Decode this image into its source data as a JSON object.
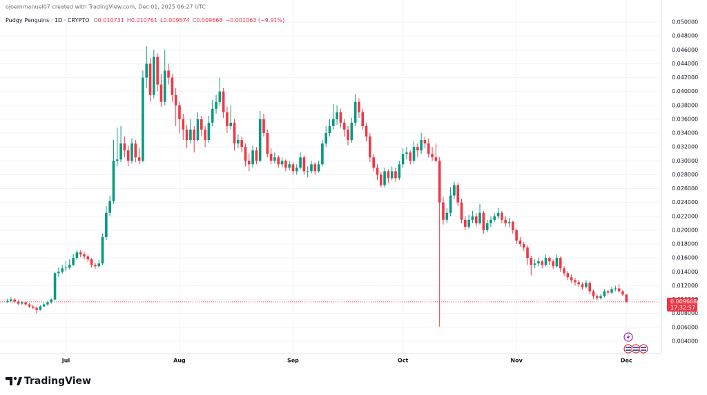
{
  "chart_data": {
    "type": "candlestick",
    "attribution": "ojoemmanuel07 created with TradingView.com, Dec 01, 2025 06:27 UTC",
    "symbol": "Pudgy Penguins · 1D · CRYPTO",
    "ohlc_header": [
      {
        "label": "O",
        "value": "0.010731"
      },
      {
        "label": "H",
        "value": "0.010761"
      },
      {
        "label": "L",
        "value": "0.009574"
      },
      {
        "label": "C",
        "value": "0.009668"
      }
    ],
    "change": "−0.001063 (−9.91%)",
    "last_price": 0.009668,
    "countdown": "17:32:57",
    "brand": "TradingView",
    "up_color": "#089981",
    "down_color": "#f23645",
    "grid": true,
    "xlim": [
      -2,
      178
    ],
    "xticks": [
      {
        "value": 16,
        "label": "Jul"
      },
      {
        "value": 47,
        "label": "Aug"
      },
      {
        "value": 78,
        "label": "Sep"
      },
      {
        "value": 108,
        "label": "Oct"
      },
      {
        "value": 139,
        "label": "Nov"
      },
      {
        "value": 169,
        "label": "Dec"
      }
    ],
    "ylim": [
      0.0022,
      0.0512
    ],
    "yticks": [
      {
        "value": 0.004,
        "label": "0.004000"
      },
      {
        "value": 0.006,
        "label": "0.006000"
      },
      {
        "value": 0.008,
        "label": "0.008000"
      },
      {
        "value": 0.01,
        "label": "0.010000"
      },
      {
        "value": 0.012,
        "label": "0.012000"
      },
      {
        "value": 0.014,
        "label": "0.014000"
      },
      {
        "value": 0.016,
        "label": "0.016000"
      },
      {
        "value": 0.018,
        "label": "0.018000"
      },
      {
        "value": 0.02,
        "label": "0.020000"
      },
      {
        "value": 0.022,
        "label": "0.022000"
      },
      {
        "value": 0.024,
        "label": "0.024000"
      },
      {
        "value": 0.026,
        "label": "0.026000"
      },
      {
        "value": 0.028,
        "label": "0.028000"
      },
      {
        "value": 0.03,
        "label": "0.030000"
      },
      {
        "value": 0.032,
        "label": "0.032000"
      },
      {
        "value": 0.034,
        "label": "0.034000"
      },
      {
        "value": 0.036,
        "label": "0.036000"
      },
      {
        "value": 0.038,
        "label": "0.038000"
      },
      {
        "value": 0.04,
        "label": "0.040000"
      },
      {
        "value": 0.042,
        "label": "0.042000"
      },
      {
        "value": 0.044,
        "label": "0.044000"
      },
      {
        "value": 0.046,
        "label": "0.046000"
      },
      {
        "value": 0.048,
        "label": "0.048000"
      },
      {
        "value": 0.05,
        "label": "0.050000"
      }
    ],
    "candles": [
      [
        0.0097,
        0.0101,
        0.0095,
        0.0098
      ],
      [
        0.0098,
        0.0103,
        0.0096,
        0.01
      ],
      [
        0.01,
        0.0102,
        0.0095,
        0.0097
      ],
      [
        0.0097,
        0.0099,
        0.0092,
        0.0094
      ],
      [
        0.0094,
        0.0098,
        0.0092,
        0.0096
      ],
      [
        0.0096,
        0.0097,
        0.0091,
        0.0093
      ],
      [
        0.0093,
        0.0095,
        0.0088,
        0.009
      ],
      [
        0.009,
        0.0092,
        0.0086,
        0.0088
      ],
      [
        0.0088,
        0.009,
        0.008,
        0.0085
      ],
      [
        0.0085,
        0.0092,
        0.0084,
        0.009
      ],
      [
        0.009,
        0.0095,
        0.0089,
        0.0093
      ],
      [
        0.0093,
        0.0098,
        0.0091,
        0.0096
      ],
      [
        0.0096,
        0.0102,
        0.0094,
        0.01
      ],
      [
        0.01,
        0.014,
        0.0099,
        0.0138
      ],
      [
        0.0138,
        0.0146,
        0.0132,
        0.014
      ],
      [
        0.014,
        0.015,
        0.0137,
        0.0145
      ],
      [
        0.0145,
        0.0155,
        0.0141,
        0.0146
      ],
      [
        0.0146,
        0.0158,
        0.0143,
        0.015
      ],
      [
        0.015,
        0.0166,
        0.0148,
        0.016
      ],
      [
        0.016,
        0.0172,
        0.0157,
        0.0168
      ],
      [
        0.0168,
        0.0171,
        0.0161,
        0.0165
      ],
      [
        0.0165,
        0.0168,
        0.0158,
        0.0162
      ],
      [
        0.0162,
        0.0165,
        0.0154,
        0.0158
      ],
      [
        0.0158,
        0.016,
        0.0146,
        0.015
      ],
      [
        0.015,
        0.0153,
        0.0144,
        0.0148
      ],
      [
        0.0148,
        0.0157,
        0.0146,
        0.0152
      ],
      [
        0.0152,
        0.0195,
        0.015,
        0.019
      ],
      [
        0.019,
        0.0235,
        0.0186,
        0.0225
      ],
      [
        0.0225,
        0.025,
        0.022,
        0.0242
      ],
      [
        0.0242,
        0.033,
        0.0238,
        0.03
      ],
      [
        0.03,
        0.0348,
        0.0292,
        0.0302
      ],
      [
        0.0302,
        0.035,
        0.0298,
        0.0325
      ],
      [
        0.0325,
        0.0335,
        0.0305,
        0.0315
      ],
      [
        0.0315,
        0.0322,
        0.0292,
        0.03
      ],
      [
        0.03,
        0.0332,
        0.0296,
        0.0325
      ],
      [
        0.0325,
        0.033,
        0.0298,
        0.0305
      ],
      [
        0.0305,
        0.0318,
        0.0295,
        0.03
      ],
      [
        0.03,
        0.043,
        0.0298,
        0.042
      ],
      [
        0.042,
        0.0465,
        0.0405,
        0.044
      ],
      [
        0.044,
        0.0448,
        0.0385,
        0.0395
      ],
      [
        0.0395,
        0.046,
        0.039,
        0.045
      ],
      [
        0.045,
        0.0455,
        0.04,
        0.041
      ],
      [
        0.041,
        0.0425,
        0.0378,
        0.0385
      ],
      [
        0.0385,
        0.046,
        0.038,
        0.043
      ],
      [
        0.043,
        0.044,
        0.041,
        0.042
      ],
      [
        0.042,
        0.0425,
        0.0385,
        0.0395
      ],
      [
        0.0395,
        0.0405,
        0.035,
        0.038
      ],
      [
        0.038,
        0.0385,
        0.034,
        0.036
      ],
      [
        0.036,
        0.0368,
        0.033,
        0.0345
      ],
      [
        0.0345,
        0.0352,
        0.0318,
        0.033
      ],
      [
        0.033,
        0.036,
        0.0325,
        0.0345
      ],
      [
        0.0345,
        0.035,
        0.0312,
        0.033
      ],
      [
        0.033,
        0.037,
        0.0328,
        0.036
      ],
      [
        0.036,
        0.0365,
        0.0335,
        0.0345
      ],
      [
        0.0345,
        0.035,
        0.032,
        0.033
      ],
      [
        0.033,
        0.0365,
        0.0326,
        0.0355
      ],
      [
        0.0355,
        0.0388,
        0.035,
        0.0375
      ],
      [
        0.0375,
        0.0395,
        0.0368,
        0.0385
      ],
      [
        0.0385,
        0.042,
        0.038,
        0.04
      ],
      [
        0.04,
        0.0405,
        0.0362,
        0.037
      ],
      [
        0.037,
        0.0378,
        0.034,
        0.035
      ],
      [
        0.035,
        0.038,
        0.0345,
        0.0355
      ],
      [
        0.0355,
        0.036,
        0.0315,
        0.0325
      ],
      [
        0.0325,
        0.0338,
        0.0318,
        0.033
      ],
      [
        0.033,
        0.0335,
        0.0312,
        0.032
      ],
      [
        0.032,
        0.0325,
        0.0292,
        0.03
      ],
      [
        0.03,
        0.031,
        0.0285,
        0.0295
      ],
      [
        0.0295,
        0.0322,
        0.029,
        0.0315
      ],
      [
        0.0315,
        0.032,
        0.0295,
        0.03
      ],
      [
        0.03,
        0.0372,
        0.0298,
        0.036
      ],
      [
        0.036,
        0.0368,
        0.0335,
        0.034
      ],
      [
        0.034,
        0.0345,
        0.0305,
        0.031
      ],
      [
        0.031,
        0.0318,
        0.0295,
        0.03
      ],
      [
        0.03,
        0.0312,
        0.0296,
        0.0305
      ],
      [
        0.0305,
        0.0308,
        0.029,
        0.0295
      ],
      [
        0.0295,
        0.0305,
        0.029,
        0.03
      ],
      [
        0.03,
        0.0302,
        0.0285,
        0.029
      ],
      [
        0.029,
        0.03,
        0.0286,
        0.0295
      ],
      [
        0.0295,
        0.0298,
        0.028,
        0.0285
      ],
      [
        0.0285,
        0.0295,
        0.028,
        0.029
      ],
      [
        0.029,
        0.0312,
        0.0288,
        0.0305
      ],
      [
        0.0305,
        0.0308,
        0.028,
        0.0285
      ],
      [
        0.0285,
        0.0292,
        0.0276,
        0.0285
      ],
      [
        0.0285,
        0.03,
        0.0282,
        0.0295
      ],
      [
        0.0295,
        0.0298,
        0.028,
        0.0285
      ],
      [
        0.0285,
        0.03,
        0.0283,
        0.0295
      ],
      [
        0.0295,
        0.033,
        0.0292,
        0.0325
      ],
      [
        0.0325,
        0.035,
        0.032,
        0.034
      ],
      [
        0.034,
        0.036,
        0.0335,
        0.035
      ],
      [
        0.035,
        0.0382,
        0.0345,
        0.036
      ],
      [
        0.036,
        0.038,
        0.0352,
        0.037
      ],
      [
        0.037,
        0.0375,
        0.0348,
        0.0355
      ],
      [
        0.0355,
        0.036,
        0.0335,
        0.0345
      ],
      [
        0.0345,
        0.035,
        0.0322,
        0.033
      ],
      [
        0.033,
        0.0362,
        0.0326,
        0.0355
      ],
      [
        0.0355,
        0.0396,
        0.035,
        0.0385
      ],
      [
        0.0385,
        0.039,
        0.0362,
        0.037
      ],
      [
        0.037,
        0.0375,
        0.0345,
        0.035
      ],
      [
        0.035,
        0.0355,
        0.0328,
        0.0335
      ],
      [
        0.0335,
        0.034,
        0.0298,
        0.0305
      ],
      [
        0.0305,
        0.031,
        0.0285,
        0.029
      ],
      [
        0.029,
        0.0295,
        0.0272,
        0.028
      ],
      [
        0.028,
        0.0284,
        0.0262,
        0.0265
      ],
      [
        0.0265,
        0.029,
        0.0262,
        0.0285
      ],
      [
        0.0285,
        0.0288,
        0.0268,
        0.0275
      ],
      [
        0.0275,
        0.0292,
        0.0272,
        0.0285
      ],
      [
        0.0285,
        0.029,
        0.027,
        0.0275
      ],
      [
        0.0275,
        0.03,
        0.0272,
        0.0295
      ],
      [
        0.0295,
        0.0318,
        0.029,
        0.031
      ],
      [
        0.031,
        0.032,
        0.0302,
        0.0312
      ],
      [
        0.0312,
        0.0315,
        0.0295,
        0.03
      ],
      [
        0.03,
        0.0328,
        0.0297,
        0.032
      ],
      [
        0.032,
        0.0325,
        0.0305,
        0.0315
      ],
      [
        0.0315,
        0.034,
        0.031,
        0.033
      ],
      [
        0.033,
        0.0335,
        0.0318,
        0.0325
      ],
      [
        0.0325,
        0.0332,
        0.0305,
        0.031
      ],
      [
        0.031,
        0.032,
        0.03,
        0.0305
      ],
      [
        0.0305,
        0.0325,
        0.0298,
        0.03
      ],
      [
        0.03,
        0.0305,
        0.0061,
        0.024
      ],
      [
        0.024,
        0.0248,
        0.0208,
        0.0215
      ],
      [
        0.0215,
        0.0232,
        0.021,
        0.0225
      ],
      [
        0.0225,
        0.0262,
        0.022,
        0.025
      ],
      [
        0.025,
        0.027,
        0.0245,
        0.0265
      ],
      [
        0.0265,
        0.0268,
        0.0235,
        0.024
      ],
      [
        0.024,
        0.0245,
        0.021,
        0.0215
      ],
      [
        0.0215,
        0.022,
        0.02,
        0.0205
      ],
      [
        0.0205,
        0.0222,
        0.0202,
        0.0215
      ],
      [
        0.0215,
        0.0228,
        0.021,
        0.022
      ],
      [
        0.022,
        0.0225,
        0.0205,
        0.021
      ],
      [
        0.021,
        0.0238,
        0.0208,
        0.0225
      ],
      [
        0.0225,
        0.0228,
        0.0195,
        0.02
      ],
      [
        0.02,
        0.0215,
        0.0197,
        0.021
      ],
      [
        0.021,
        0.022,
        0.0205,
        0.0215
      ],
      [
        0.0215,
        0.0225,
        0.0212,
        0.022
      ],
      [
        0.022,
        0.0232,
        0.0216,
        0.0225
      ],
      [
        0.0225,
        0.0228,
        0.021,
        0.0215
      ],
      [
        0.0215,
        0.022,
        0.0205,
        0.021
      ],
      [
        0.021,
        0.0218,
        0.0204,
        0.0212
      ],
      [
        0.0212,
        0.0214,
        0.0195,
        0.02
      ],
      [
        0.02,
        0.0202,
        0.018,
        0.0185
      ],
      [
        0.0185,
        0.019,
        0.0176,
        0.018
      ],
      [
        0.018,
        0.0183,
        0.017,
        0.0175
      ],
      [
        0.0175,
        0.0178,
        0.015,
        0.016
      ],
      [
        0.016,
        0.0163,
        0.0135,
        0.015
      ],
      [
        0.015,
        0.0158,
        0.0145,
        0.0152
      ],
      [
        0.0152,
        0.016,
        0.0148,
        0.0155
      ],
      [
        0.0155,
        0.0157,
        0.0145,
        0.015
      ],
      [
        0.015,
        0.0165,
        0.0148,
        0.016
      ],
      [
        0.016,
        0.0162,
        0.015,
        0.0155
      ],
      [
        0.0155,
        0.0158,
        0.0144,
        0.0148
      ],
      [
        0.0148,
        0.0165,
        0.0146,
        0.016
      ],
      [
        0.016,
        0.0162,
        0.014,
        0.0145
      ],
      [
        0.0145,
        0.0148,
        0.0134,
        0.0138
      ],
      [
        0.0138,
        0.0141,
        0.0128,
        0.0132
      ],
      [
        0.0132,
        0.0136,
        0.0124,
        0.0128
      ],
      [
        0.0128,
        0.0131,
        0.012,
        0.0125
      ],
      [
        0.0125,
        0.0128,
        0.0118,
        0.0122
      ],
      [
        0.0122,
        0.0125,
        0.0114,
        0.0118
      ],
      [
        0.0118,
        0.0128,
        0.0116,
        0.0124
      ],
      [
        0.0124,
        0.0126,
        0.0108,
        0.0112
      ],
      [
        0.0112,
        0.0114,
        0.0101,
        0.0105
      ],
      [
        0.0105,
        0.0107,
        0.0099,
        0.0102
      ],
      [
        0.0102,
        0.0108,
        0.01,
        0.0105
      ],
      [
        0.0105,
        0.0115,
        0.0103,
        0.0112
      ],
      [
        0.0112,
        0.0114,
        0.0107,
        0.011
      ],
      [
        0.011,
        0.0118,
        0.0108,
        0.0115
      ],
      [
        0.0115,
        0.012,
        0.0112,
        0.0116
      ],
      [
        0.0116,
        0.0122,
        0.011,
        0.0112
      ],
      [
        0.0112,
        0.0114,
        0.0105,
        0.010731
      ],
      [
        0.010731,
        0.010761,
        0.009574,
        0.009668
      ]
    ]
  }
}
